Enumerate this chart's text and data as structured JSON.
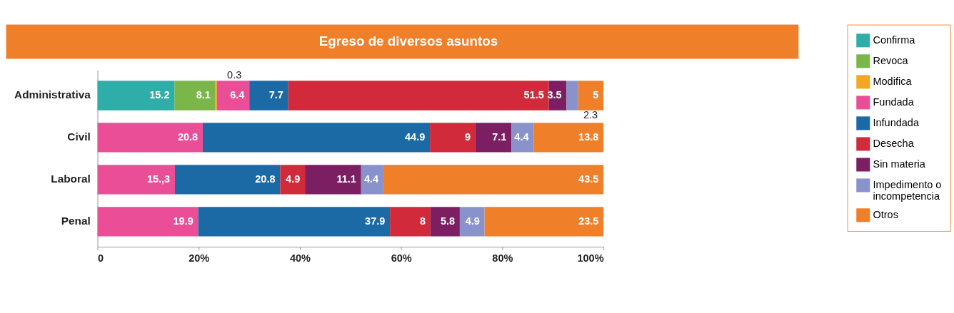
{
  "chart_data": {
    "type": "bar",
    "orientation": "horizontal",
    "stacked": true,
    "title": "Egreso de diversos asuntos",
    "categories": [
      "Administrativa",
      "Civil",
      "Laboral",
      "Penal"
    ],
    "series": [
      {
        "name": "Confirma",
        "color": "#2fada8",
        "values": [
          15.2,
          null,
          null,
          null
        ],
        "value_labels": [
          "15.2",
          null,
          null,
          null
        ]
      },
      {
        "name": "Revoca",
        "color": "#7ab648",
        "values": [
          8.1,
          null,
          null,
          null
        ],
        "value_labels": [
          "8.1",
          null,
          null,
          null
        ]
      },
      {
        "name": "Modifica",
        "color": "#f5a623",
        "values": [
          0.3,
          null,
          null,
          null
        ],
        "value_labels": [
          "0.3",
          null,
          null,
          null
        ]
      },
      {
        "name": "Fundada",
        "color": "#e94e96",
        "values": [
          6.4,
          20.8,
          15.3,
          19.9
        ],
        "value_labels": [
          "6.4",
          "20.8",
          "15.,3",
          "19.9"
        ]
      },
      {
        "name": "Infundada",
        "color": "#1b6aa5",
        "values": [
          7.7,
          44.9,
          20.8,
          37.9
        ],
        "value_labels": [
          "7.7",
          "44.9",
          "20.8",
          "37.9"
        ]
      },
      {
        "name": "Desecha",
        "color": "#d12a3a",
        "values": [
          51.5,
          9,
          4.9,
          8
        ],
        "value_labels": [
          "51.5",
          "9",
          "4.9",
          "8"
        ]
      },
      {
        "name": "Sin materia",
        "color": "#7b1f62",
        "values": [
          3.5,
          7.1,
          11.1,
          5.8
        ],
        "value_labels": [
          "3.5",
          "7.1",
          "11.1",
          "5.8"
        ]
      },
      {
        "name": "Impedimento o incompetencia",
        "color": "#8a92cc",
        "values": [
          2.3,
          4.4,
          4.4,
          4.9
        ],
        "value_labels": [
          "2.3",
          "4.4",
          "4.4",
          "4.9"
        ]
      },
      {
        "name": "Otros",
        "color": "#f07f2a",
        "values": [
          5,
          13.8,
          43.5,
          23.5
        ],
        "value_labels": [
          "5",
          "13.8",
          "43.5",
          "23.5"
        ]
      }
    ],
    "xlim": [
      0,
      100
    ],
    "xticks": [
      0,
      {
        "value": 20,
        "label": "20%"
      },
      {
        "value": 40,
        "label": "40%"
      },
      {
        "value": 60,
        "label": "60%"
      },
      {
        "value": 80,
        "label": "80%"
      },
      {
        "value": 100,
        "label": "100%"
      }
    ],
    "grid": false,
    "legend": "right"
  }
}
